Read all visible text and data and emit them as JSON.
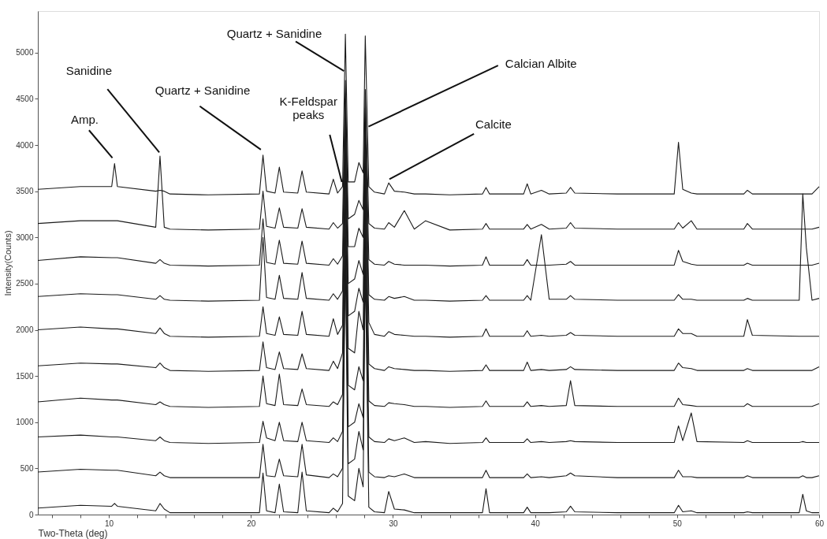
{
  "chart_data": {
    "type": "line",
    "xlabel": "Two-Theta (deg)",
    "ylabel": "Intensity(Counts)",
    "xlim": [
      5,
      60
    ],
    "ylim": [
      0,
      5450
    ],
    "xticks": [
      {
        "value": 6,
        "label": null
      },
      {
        "value": 8,
        "label": null
      },
      10,
      {
        "value": 12,
        "label": null
      },
      {
        "value": 14,
        "label": null
      },
      {
        "value": 16,
        "label": null
      },
      {
        "value": 18,
        "label": null
      },
      20,
      {
        "value": 22,
        "label": null
      },
      {
        "value": 24,
        "label": null
      },
      {
        "value": 26,
        "label": null
      },
      {
        "value": 28,
        "label": null
      },
      30,
      {
        "value": 32,
        "label": null
      },
      {
        "value": 34,
        "label": null
      },
      {
        "value": 36,
        "label": null
      },
      {
        "value": 38,
        "label": null
      },
      40,
      {
        "value": 42,
        "label": null
      },
      {
        "value": 44,
        "label": null
      },
      {
        "value": 46,
        "label": null
      },
      {
        "value": 48,
        "label": null
      },
      50,
      {
        "value": 52,
        "label": null
      },
      {
        "value": 54,
        "label": null
      },
      {
        "value": 56,
        "label": null
      },
      {
        "value": 58,
        "label": null
      },
      60
    ],
    "yticks": [
      0,
      500,
      1000,
      1500,
      2000,
      2500,
      3000,
      3500,
      4000,
      4500,
      5000
    ],
    "grid": false,
    "legend": false,
    "marker": "none",
    "line_style": "solid",
    "x": [
      5,
      8,
      10.2,
      10.4,
      10.6,
      13.3,
      13.6,
      13.9,
      14.3,
      17,
      20.6,
      20.85,
      21.1,
      21.7,
      22.0,
      22.3,
      23.3,
      23.6,
      23.9,
      25.5,
      25.8,
      26.1,
      26.45,
      26.65,
      26.85,
      27.3,
      27.6,
      27.9,
      28.05,
      28.3,
      28.7,
      29.4,
      29.7,
      30.1,
      30.8,
      31.5,
      32.3,
      34,
      36.3,
      36.55,
      36.8,
      39.2,
      39.45,
      39.7,
      40.45,
      41,
      42.2,
      42.5,
      42.8,
      45.8,
      49.8,
      50.1,
      50.4,
      51.0,
      51.4,
      54.7,
      54.95,
      55.3,
      58.6,
      58.85,
      59.1,
      59.5,
      60
    ],
    "series": [
      {
        "color": "#1a1a1a",
        "values": [
          3520,
          3550,
          3550,
          3800,
          3550,
          3500,
          3510,
          3500,
          3470,
          3460,
          3470,
          3890,
          3500,
          3480,
          3760,
          3490,
          3480,
          3720,
          3490,
          3470,
          3630,
          3480,
          3550,
          5200,
          3600,
          3600,
          3810,
          3700,
          5180,
          3550,
          3490,
          3470,
          3590,
          3500,
          3490,
          3470,
          3470,
          3460,
          3470,
          3540,
          3470,
          3470,
          3580,
          3470,
          3510,
          3470,
          3480,
          3540,
          3480,
          3470,
          3470,
          4030,
          3520,
          3480,
          3470,
          3470,
          3510,
          3470,
          3470,
          3470,
          3470,
          3470,
          3550
        ]
      },
      {
        "color": "#1a1a1a",
        "values": [
          3150,
          3180,
          3180,
          3180,
          3180,
          3110,
          3880,
          3110,
          3090,
          3080,
          3090,
          3500,
          3120,
          3100,
          3320,
          3110,
          3100,
          3310,
          3110,
          3090,
          3160,
          3100,
          3150,
          4700,
          3200,
          3250,
          3400,
          3300,
          4600,
          3150,
          3100,
          3090,
          3160,
          3110,
          3290,
          3090,
          3180,
          3080,
          3090,
          3150,
          3090,
          3090,
          3140,
          3090,
          3140,
          3090,
          3100,
          3160,
          3100,
          3090,
          3090,
          3160,
          3100,
          3180,
          3090,
          3090,
          3150,
          3090,
          3090,
          3090,
          3090,
          3090,
          3110
        ]
      },
      {
        "color": "#1a1a1a",
        "values": [
          2750,
          2790,
          2780,
          2780,
          2780,
          2720,
          2760,
          2720,
          2700,
          2690,
          2700,
          3200,
          2730,
          2710,
          2970,
          2720,
          2710,
          2960,
          2720,
          2700,
          2770,
          2710,
          2800,
          4500,
          2900,
          2900,
          3100,
          3000,
          4400,
          2760,
          2710,
          2700,
          2740,
          2710,
          2700,
          2700,
          2700,
          2690,
          2700,
          2790,
          2700,
          2700,
          2760,
          2700,
          2700,
          2700,
          2710,
          2740,
          2700,
          2700,
          2700,
          2860,
          2740,
          2710,
          2700,
          2700,
          2720,
          2700,
          2700,
          2700,
          2700,
          2700,
          2720
        ]
      },
      {
        "color": "#1a1a1a",
        "values": [
          2360,
          2390,
          2380,
          2380,
          2380,
          2330,
          2370,
          2330,
          2320,
          2310,
          2320,
          3000,
          2350,
          2330,
          2590,
          2340,
          2330,
          2620,
          2340,
          2320,
          2390,
          2330,
          2420,
          4300,
          2500,
          2550,
          2750,
          2600,
          4200,
          2380,
          2330,
          2320,
          2360,
          2340,
          2360,
          2320,
          2320,
          2310,
          2320,
          2370,
          2320,
          2320,
          2370,
          2320,
          3030,
          2330,
          2330,
          2370,
          2330,
          2320,
          2320,
          2380,
          2330,
          2330,
          2320,
          2320,
          2340,
          2320,
          2320,
          3470,
          2890,
          2320,
          2340
        ]
      },
      {
        "color": "#1a1a1a",
        "values": [
          2000,
          2030,
          2010,
          2010,
          2010,
          1960,
          2020,
          1960,
          1930,
          1920,
          1930,
          2250,
          1960,
          1940,
          2140,
          1950,
          1940,
          2200,
          1950,
          1930,
          2120,
          1950,
          2050,
          4100,
          2150,
          2200,
          2450,
          2300,
          4000,
          2080,
          1950,
          1930,
          1980,
          1950,
          1940,
          1930,
          1930,
          1920,
          1930,
          2010,
          1930,
          1930,
          1990,
          1930,
          1940,
          1930,
          1940,
          1970,
          1940,
          1930,
          1930,
          2010,
          1960,
          1960,
          1930,
          1930,
          2110,
          1940,
          1930,
          1930,
          1930,
          1930,
          1930
        ]
      },
      {
        "color": "#1a1a1a",
        "values": [
          1610,
          1640,
          1630,
          1630,
          1630,
          1590,
          1640,
          1590,
          1560,
          1550,
          1560,
          1870,
          1590,
          1570,
          1760,
          1580,
          1570,
          1740,
          1580,
          1560,
          1660,
          1580,
          1750,
          3900,
          1800,
          1750,
          2200,
          2000,
          3800,
          1630,
          1580,
          1560,
          1600,
          1580,
          1570,
          1560,
          1560,
          1550,
          1560,
          1620,
          1560,
          1560,
          1650,
          1560,
          1570,
          1560,
          1570,
          1600,
          1570,
          1560,
          1560,
          1640,
          1590,
          1580,
          1560,
          1560,
          1580,
          1560,
          1560,
          1560,
          1560,
          1560,
          1600
        ]
      },
      {
        "color": "#1a1a1a",
        "values": [
          1220,
          1260,
          1240,
          1240,
          1240,
          1190,
          1220,
          1190,
          1170,
          1160,
          1170,
          1500,
          1200,
          1180,
          1520,
          1190,
          1180,
          1360,
          1190,
          1170,
          1220,
          1190,
          1300,
          3600,
          1400,
          1350,
          1600,
          1450,
          3500,
          1230,
          1180,
          1170,
          1210,
          1200,
          1190,
          1170,
          1170,
          1160,
          1170,
          1230,
          1170,
          1170,
          1220,
          1170,
          1180,
          1170,
          1180,
          1450,
          1180,
          1170,
          1170,
          1260,
          1190,
          1180,
          1170,
          1170,
          1200,
          1170,
          1170,
          1170,
          1170,
          1170,
          1200
        ]
      },
      {
        "color": "#1a1a1a",
        "values": [
          840,
          860,
          840,
          840,
          840,
          800,
          840,
          800,
          780,
          770,
          780,
          1010,
          830,
          800,
          1000,
          800,
          790,
          1000,
          800,
          780,
          830,
          790,
          900,
          3300,
          950,
          1000,
          1200,
          1050,
          3200,
          840,
          790,
          780,
          820,
          800,
          830,
          780,
          790,
          770,
          780,
          830,
          780,
          780,
          820,
          780,
          790,
          780,
          790,
          800,
          790,
          780,
          780,
          960,
          800,
          1100,
          790,
          780,
          800,
          780,
          780,
          790,
          780,
          780,
          780
        ]
      },
      {
        "color": "#1a1a1a",
        "values": [
          460,
          490,
          480,
          480,
          480,
          420,
          460,
          420,
          400,
          400,
          400,
          760,
          420,
          410,
          600,
          420,
          410,
          760,
          430,
          400,
          440,
          410,
          500,
          3000,
          550,
          600,
          900,
          700,
          2900,
          460,
          410,
          400,
          420,
          410,
          440,
          400,
          400,
          400,
          400,
          480,
          400,
          400,
          440,
          400,
          410,
          400,
          420,
          450,
          420,
          400,
          400,
          480,
          410,
          410,
          400,
          400,
          420,
          400,
          400,
          420,
          400,
          400,
          420
        ]
      },
      {
        "color": "#1a1a1a",
        "values": [
          70,
          100,
          90,
          120,
          90,
          40,
          120,
          60,
          20,
          20,
          20,
          450,
          40,
          20,
          330,
          30,
          20,
          460,
          40,
          20,
          70,
          30,
          120,
          2800,
          200,
          150,
          500,
          300,
          2700,
          80,
          30,
          20,
          250,
          60,
          50,
          20,
          20,
          20,
          20,
          280,
          20,
          20,
          80,
          20,
          20,
          20,
          30,
          90,
          30,
          20,
          20,
          100,
          30,
          40,
          20,
          20,
          30,
          20,
          20,
          220,
          40,
          20,
          20
        ]
      }
    ],
    "annotations": [
      {
        "text": "Amp.",
        "x": 10.4,
        "y": 3800
      },
      {
        "text": "Sanidine",
        "x": 13.6,
        "y": 3880
      },
      {
        "text": "Quartz + Sanidine",
        "x": 20.85,
        "y": 3890
      },
      {
        "text": "Quartz + Sanidine",
        "x": 26.65,
        "y": 5200
      },
      {
        "text": "K-Feldspar\npeaks",
        "x": 26.45,
        "y": 3550
      },
      {
        "text": "Calcian Albite",
        "x": 28.2,
        "y": 4200
      },
      {
        "text": "Calcite",
        "x": 29.7,
        "y": 3590
      }
    ]
  }
}
